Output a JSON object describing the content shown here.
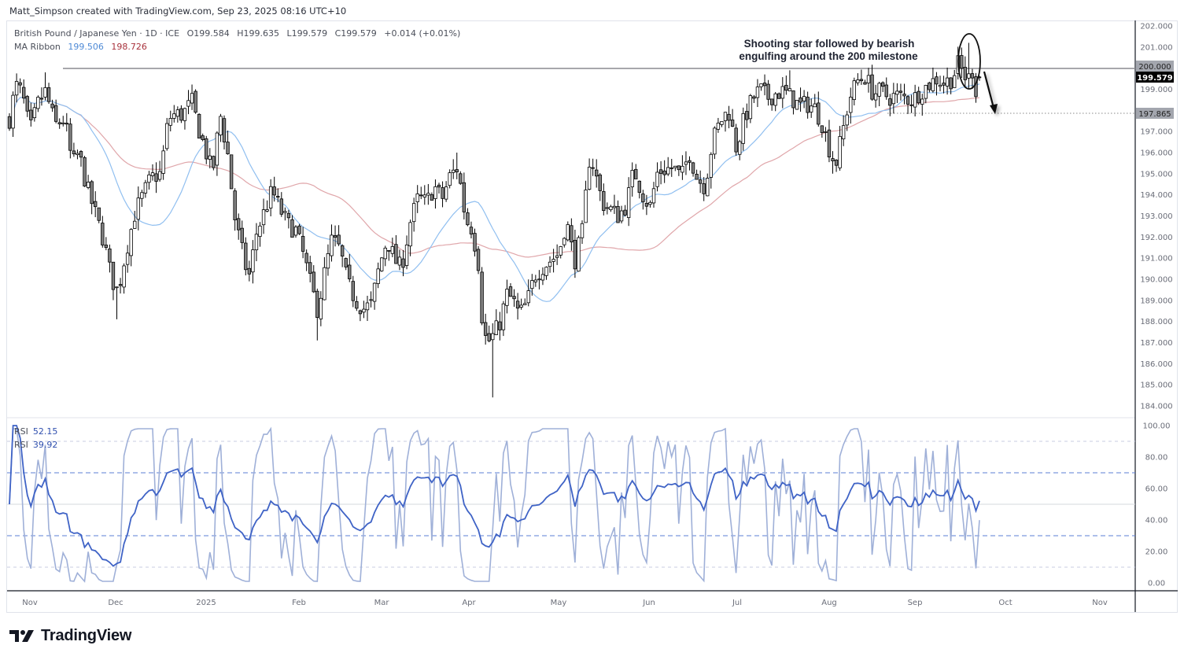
{
  "header": {
    "credit": "Matt_Simpson created with TradingView.com, Sep 23, 2025 08:16 UTC+10"
  },
  "legend": {
    "symbol": "British Pound / Japanese Yen · 1D · ICE",
    "open": "O199.584",
    "high": "H199.635",
    "low": "L199.579",
    "close": "C199.579",
    "change": "+0.014 (+0.01%)",
    "ma_label": "MA Ribbon",
    "ma_fast": "199.506",
    "ma_slow": "198.726"
  },
  "rsi_legend": {
    "label1": "RSI",
    "value1": "52.15",
    "label2": "RSI",
    "value2": "39.92"
  },
  "annotation": {
    "line1": "Shooting star followed by bearish",
    "line2": "engulfing around the 200 milestone"
  },
  "price_axis": {
    "ticks": [
      "202.000",
      "201.000",
      "200.000",
      "199.000",
      "197.000",
      "196.000",
      "195.000",
      "194.000",
      "193.000",
      "192.000",
      "191.000",
      "190.000",
      "189.000",
      "188.000",
      "187.000",
      "186.000",
      "185.000",
      "184.000"
    ],
    "current_price": "199.579",
    "level_200": "200.000",
    "level_target": "197.865"
  },
  "rsi_axis": {
    "ticks": [
      "100.00",
      "80.00",
      "60.00",
      "40.00",
      "20.00",
      "0.00"
    ]
  },
  "time_axis": {
    "labels": [
      "Nov",
      "Dec",
      "2025",
      "Feb",
      "Mar",
      "Apr",
      "May",
      "Jun",
      "Jul",
      "Aug",
      "Sep",
      "Oct",
      "Nov"
    ]
  },
  "logo": {
    "text": "TradingView"
  },
  "colors": {
    "bull_body": "#ffffff",
    "bear_body": "#808080",
    "candle_border": "#000000",
    "ma_fast": "#90bff0",
    "ma_slow": "#e0a6aa",
    "rsi_fast": "#9fb0d8",
    "rsi_slow": "#3f63c6",
    "level_line": "#8a8a90",
    "price_tag_bg": "#000000",
    "level_tag_bg": "#a3a6ae"
  },
  "chart_data": [
    {
      "type": "candlestick",
      "title": "British Pound / Japanese Yen · 1D · ICE",
      "xlabel": "",
      "ylabel": "GBP/JPY",
      "ylim": [
        183.5,
        202.2
      ],
      "x_ticks": [
        "Nov",
        "Dec",
        "2025",
        "Feb",
        "Mar",
        "Apr",
        "May",
        "Jun",
        "Jul",
        "Aug",
        "Sep",
        "Oct",
        "Nov"
      ],
      "last": {
        "open": 199.584,
        "high": 199.635,
        "low": 199.579,
        "close": 199.579,
        "change": 0.014,
        "change_pct": 0.01
      },
      "ma_ribbon": {
        "fast": 199.506,
        "slow": 198.726
      },
      "horizontal_levels": [
        200.0,
        197.865
      ],
      "annotation": "Shooting star followed by bearish engulfing around the 200 milestone",
      "key_points": [
        {
          "date": "late Oct 2024",
          "approx_close": 197.8
        },
        {
          "date": "early Nov 2024",
          "approx_high": 199.8
        },
        {
          "date": "early Dec 2024",
          "approx_low": 188.1
        },
        {
          "date": "mid Jan 2025",
          "approx_high": 199.0
        },
        {
          "date": "early Feb 2025",
          "approx_low": 187.1
        },
        {
          "date": "late Mar 2025",
          "approx_high": 196.0
        },
        {
          "date": "early Apr 2025",
          "approx_low": 184.4
        },
        {
          "date": "mid Jul 2025",
          "approx_high": 199.8
        },
        {
          "date": "early Aug 2025",
          "approx_low": 195.0
        },
        {
          "date": "mid Sep 2025",
          "approx_high": 201.2
        },
        {
          "date": "Sep 22 2025",
          "approx_close": 199.579
        }
      ]
    },
    {
      "type": "line",
      "title": "RSI",
      "ylim": [
        0,
        100
      ],
      "y_ticks": [
        0,
        20,
        40,
        60,
        80,
        100
      ],
      "bands": [
        10,
        30,
        50,
        70,
        90
      ],
      "series": [
        {
          "name": "RSI (fast)",
          "last": 39.92
        },
        {
          "name": "RSI (slow)",
          "last": 52.15
        }
      ]
    }
  ]
}
